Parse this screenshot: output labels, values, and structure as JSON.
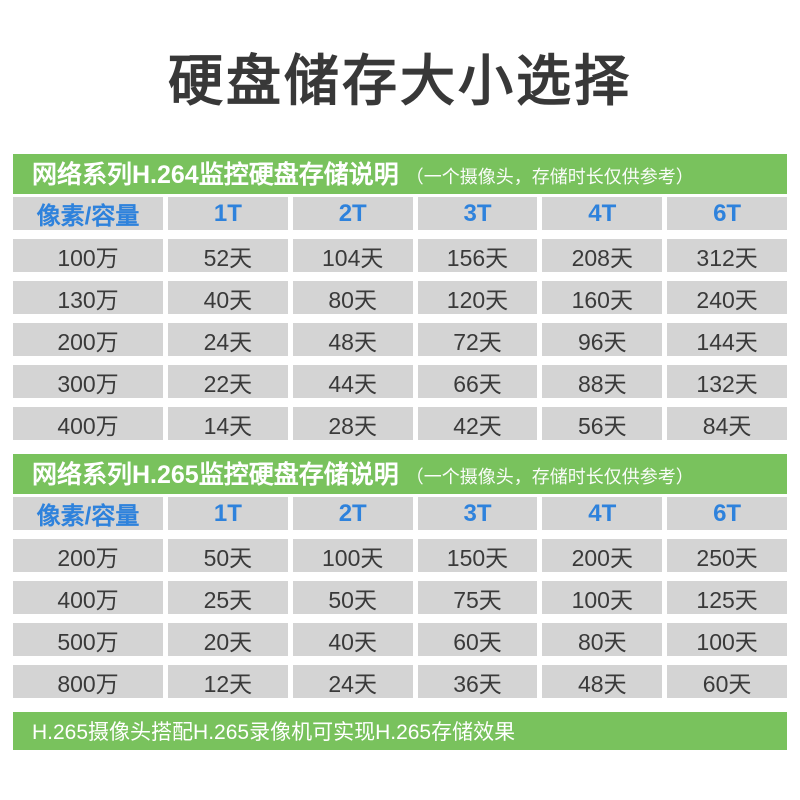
{
  "title": "硬盘储存大小选择",
  "footer_note": "H.265摄像头搭配H.265录像机可实现H.265存储效果",
  "colors": {
    "green": "#79c25d",
    "cell_bg": "#d4d4d4",
    "cell_text": "#3a3a3a",
    "header_blue": "#2e82dc",
    "title_color": "#383838"
  },
  "chart_data": [
    {
      "type": "table",
      "title": "网络系列H.264监控硬盘存储说明",
      "subtitle": "（一个摄像头，存储时长仅供参考）",
      "columns": [
        "像素/容量",
        "1T",
        "2T",
        "3T",
        "4T",
        "6T"
      ],
      "rows": [
        [
          "100万",
          "52天",
          "104天",
          "156天",
          "208天",
          "312天"
        ],
        [
          "130万",
          "40天",
          "80天",
          "120天",
          "160天",
          "240天"
        ],
        [
          "200万",
          "24天",
          "48天",
          "72天",
          "96天",
          "144天"
        ],
        [
          "300万",
          "22天",
          "44天",
          "66天",
          "88天",
          "132天"
        ],
        [
          "400万",
          "14天",
          "28天",
          "42天",
          "56天",
          "84天"
        ]
      ]
    },
    {
      "type": "table",
      "title": "网络系列H.265监控硬盘存储说明",
      "subtitle": "（一个摄像头，存储时长仅供参考）",
      "columns": [
        "像素/容量",
        "1T",
        "2T",
        "3T",
        "4T",
        "6T"
      ],
      "rows": [
        [
          "200万",
          "50天",
          "100天",
          "150天",
          "200天",
          "250天"
        ],
        [
          "400万",
          "25天",
          "50天",
          "75天",
          "100天",
          "125天"
        ],
        [
          "500万",
          "20天",
          "40天",
          "60天",
          "80天",
          "100天"
        ],
        [
          "800万",
          "12天",
          "24天",
          "36天",
          "48天",
          "60天"
        ]
      ]
    }
  ]
}
